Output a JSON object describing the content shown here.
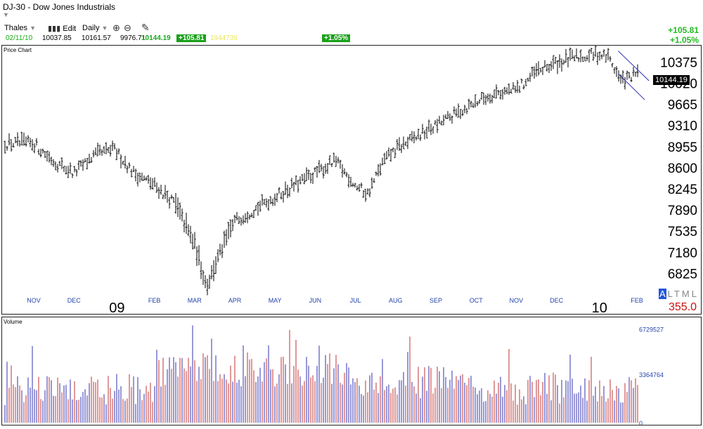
{
  "window": {
    "title": "DJ-30 - Dow Jones Industrials"
  },
  "toolbar": {
    "user": "Thales",
    "edit_label": "Edit",
    "period": "Daily"
  },
  "quote": {
    "date": "02/11/10",
    "open": "10037.85",
    "high": "10161.57",
    "low": "9976.71",
    "last": "10144.19",
    "change": "+105.81",
    "volume": "1944736",
    "pct_box": "+1.05%",
    "change_right": "+105.81",
    "pct_right": "+1.05%"
  },
  "price_panel": {
    "label": "Price Chart",
    "last_tag": "10144.19",
    "year_labels": [
      {
        "text": "09",
        "month_index": 2
      },
      {
        "text": "10",
        "month_index": 14
      }
    ],
    "altml": "ALTML",
    "scale_value": "355.0"
  },
  "volume_panel": {
    "label": "Volume"
  },
  "colors": {
    "up_volume": "#c03030",
    "down_volume": "#3030b0",
    "bars": "#000000",
    "trend": "#3030b0",
    "up_text": "#22bb22"
  },
  "chart_data": [
    {
      "type": "ohlc",
      "title": "DJ-30 - Dow Jones Industrials",
      "x_unit": "week",
      "categories": [
        "NOV",
        "DEC",
        "09",
        "FEB",
        "MAR",
        "APR",
        "MAY",
        "JUN",
        "JUL",
        "AUG",
        "SEP",
        "OCT",
        "NOV",
        "DEC",
        "10",
        "FEB"
      ],
      "month_labels": [
        "NOV",
        "DEC",
        "",
        "FEB",
        "MAR",
        "APR",
        "MAY",
        "JUN",
        "JUL",
        "AUG",
        "SEP",
        "OCT",
        "NOV",
        "DEC",
        "",
        "FEB"
      ],
      "y_ticks": [
        10375,
        10020,
        9665,
        9310,
        8955,
        8600,
        8245,
        7890,
        7535,
        7180,
        6825
      ],
      "ylim": [
        6500,
        10650
      ],
      "weekly_close_path": [
        [
          0,
          9000
        ],
        [
          0.5,
          8700
        ],
        [
          1,
          8500
        ],
        [
          1.5,
          8800
        ],
        [
          2,
          8900
        ],
        [
          2.5,
          8500
        ],
        [
          3,
          8300
        ],
        [
          3.5,
          8000
        ],
        [
          4,
          7300
        ],
        [
          4.3,
          6600
        ],
        [
          4.6,
          7100
        ],
        [
          5,
          7700
        ],
        [
          5.5,
          7900
        ],
        [
          6,
          8100
        ],
        [
          6.5,
          8300
        ],
        [
          7,
          8500
        ],
        [
          7.5,
          8700
        ],
        [
          8,
          8300
        ],
        [
          8.3,
          8150
        ],
        [
          8.7,
          8700
        ],
        [
          9,
          8900
        ],
        [
          9.5,
          9100
        ],
        [
          10,
          9300
        ],
        [
          10.5,
          9500
        ],
        [
          11,
          9700
        ],
        [
          11.5,
          9850
        ],
        [
          12,
          9900
        ],
        [
          12.5,
          10200
        ],
        [
          13,
          10350
        ],
        [
          13.5,
          10450
        ],
        [
          14,
          10500
        ],
        [
          14.3,
          10450
        ],
        [
          14.6,
          10050
        ],
        [
          15,
          10150
        ]
      ],
      "trend_channel": {
        "start_month": 14.5,
        "end_month": 15.3
      }
    },
    {
      "type": "bar",
      "title": "Volume",
      "y_ticks": [
        "6729527",
        "3364764",
        "0"
      ],
      "ylim": [
        0,
        7100000
      ]
    }
  ]
}
